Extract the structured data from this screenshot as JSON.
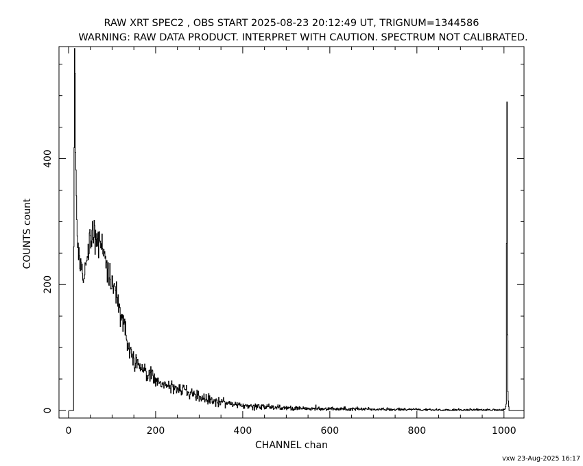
{
  "chart_data": {
    "type": "line",
    "title": "RAW XRT SPEC2 , OBS START 2025-08-23 20:12:49 UT, TRIGNUM=1344586",
    "subtitle": "WARNING: RAW DATA PRODUCT. INTERPRET WITH CAUTION. SPECTRUM NOT CALIBRATED.",
    "xlabel": "CHANNEL  chan",
    "ylabel": "COUNTS  count",
    "xlim": [
      -22,
      1046
    ],
    "ylim": [
      -12,
      578
    ],
    "xticks": [
      0,
      200,
      400,
      600,
      800,
      1000
    ],
    "yticks": [
      0,
      200,
      400
    ],
    "grid": false,
    "legend": "none",
    "line_color": "#000000",
    "series": [
      {
        "x": [
          0,
          11,
          12,
          14,
          15,
          16,
          18,
          20,
          25,
          30,
          35,
          40,
          45,
          50,
          55,
          60,
          65,
          70,
          75,
          80,
          85,
          90,
          95,
          100,
          110,
          120,
          130,
          140,
          150,
          160,
          180,
          200,
          220,
          250,
          280,
          300,
          330,
          360,
          400,
          450,
          500,
          550,
          600,
          650,
          700,
          750,
          800,
          850,
          900,
          950,
          990,
          1000,
          1003,
          1005,
          1006,
          1007,
          1008,
          1009,
          1010,
          1011,
          1012,
          1030
        ],
        "y": [
          0,
          0,
          260,
          575,
          535,
          410,
          330,
          270,
          240,
          225,
          215,
          230,
          255,
          275,
          282,
          278,
          270,
          265,
          268,
          258,
          240,
          222,
          210,
          200,
          180,
          155,
          125,
          95,
          80,
          70,
          58,
          50,
          42,
          35,
          28,
          22,
          16,
          12,
          8,
          6,
          4,
          3,
          2.5,
          2,
          2,
          1.5,
          1.5,
          1,
          1,
          1,
          1,
          1,
          2,
          10,
          265,
          490,
          120,
          30,
          15,
          8,
          0,
          0
        ]
      }
    ]
  },
  "footer": {
    "stamp": "vxw 23-Aug-2025 16:17"
  }
}
